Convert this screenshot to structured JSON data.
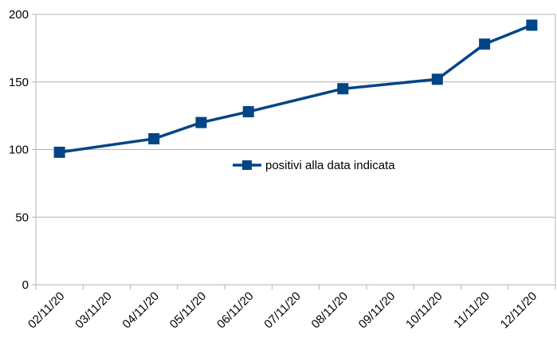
{
  "chart_data": {
    "type": "line",
    "x": [
      "02/11/20",
      "03/11/20",
      "04/11/20",
      "05/11/20",
      "06/11/20",
      "07/11/20",
      "08/11/20",
      "09/11/20",
      "10/11/20",
      "11/11/20",
      "12/11/20"
    ],
    "series": [
      {
        "name": "positivi alla data indicata",
        "points": [
          {
            "x": "02/11/20",
            "y": 98
          },
          {
            "x": "04/11/20",
            "y": 108
          },
          {
            "x": "05/11/20",
            "y": 120
          },
          {
            "x": "06/11/20",
            "y": 128
          },
          {
            "x": "08/11/20",
            "y": 145
          },
          {
            "x": "10/11/20",
            "y": 152
          },
          {
            "x": "11/11/20",
            "y": 178
          },
          {
            "x": "12/11/20",
            "y": 192
          }
        ],
        "color": "#004586",
        "marker": "square"
      }
    ],
    "yticks": [
      0,
      50,
      100,
      150,
      200
    ],
    "ylim": [
      0,
      200
    ],
    "grid": "horizontal",
    "legend_position": "inside-center-right",
    "colors": {
      "gridline": "#b3b3b3",
      "series": "#004586"
    }
  }
}
